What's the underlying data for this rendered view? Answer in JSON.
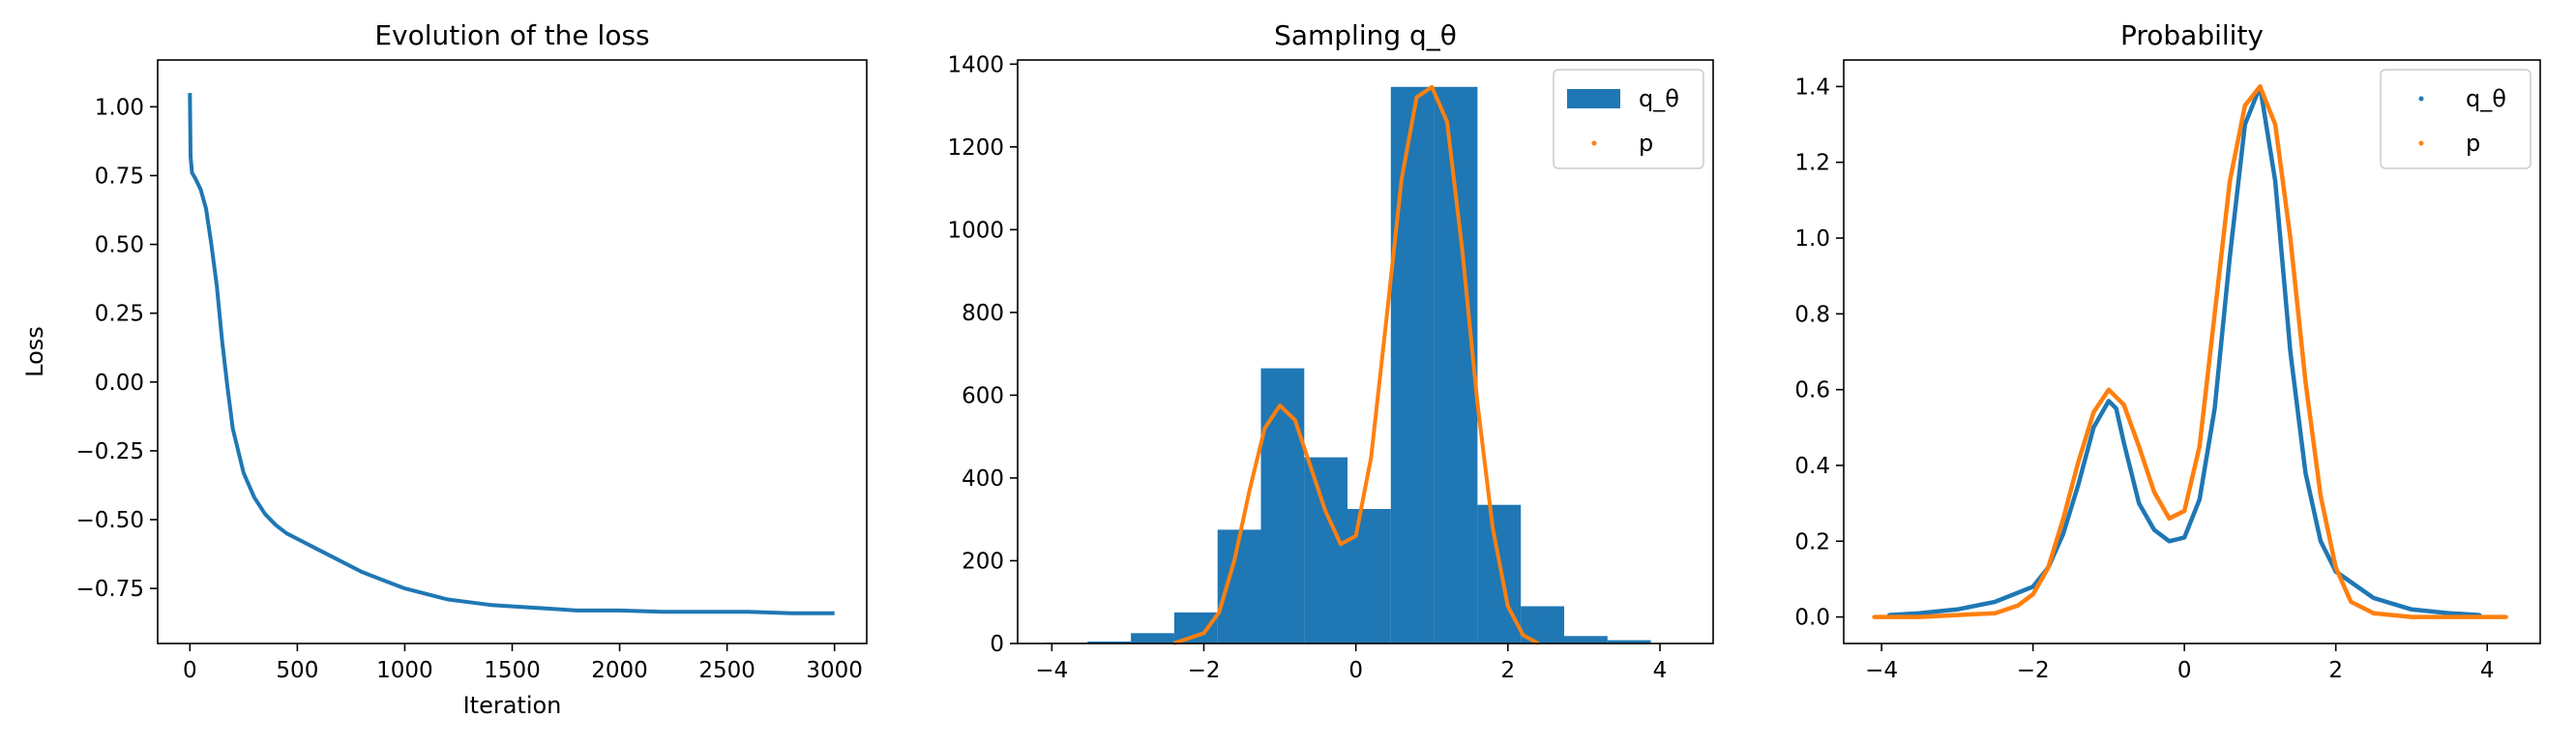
{
  "chart_data": [
    {
      "type": "line",
      "title": "Evolution of the loss",
      "xlabel": "Iteration",
      "ylabel": "Loss",
      "xlim": [
        -150,
        3150
      ],
      "ylim": [
        -0.95,
        1.17
      ],
      "xticks": [
        0,
        500,
        1000,
        1500,
        2000,
        2500,
        3000
      ],
      "xtick_labels": [
        "0",
        "500",
        "1000",
        "1500",
        "2000",
        "2500",
        "3000"
      ],
      "yticks": [
        -0.75,
        -0.5,
        -0.25,
        0.0,
        0.25,
        0.5,
        0.75,
        1.0
      ],
      "ytick_labels": [
        "−0.75",
        "−0.50",
        "−0.25",
        "0.00",
        "0.25",
        "0.50",
        "0.75",
        "1.00"
      ],
      "grid": false,
      "color": "#1f77b4",
      "series": [
        {
          "x": [
            0,
            3,
            10,
            25,
            50,
            75,
            100,
            125,
            150,
            175,
            200,
            250,
            300,
            350,
            400,
            450,
            500,
            600,
            700,
            800,
            900,
            1000,
            1100,
            1200,
            1300,
            1400,
            1500,
            1600,
            1700,
            1800,
            1900,
            2000,
            2200,
            2400,
            2600,
            2800,
            3000
          ],
          "values": [
            1.05,
            0.82,
            0.76,
            0.74,
            0.7,
            0.63,
            0.5,
            0.35,
            0.15,
            -0.02,
            -0.17,
            -0.33,
            -0.42,
            -0.48,
            -0.52,
            -0.55,
            -0.57,
            -0.61,
            -0.65,
            -0.69,
            -0.72,
            -0.75,
            -0.77,
            -0.79,
            -0.8,
            -0.81,
            -0.815,
            -0.82,
            -0.825,
            -0.83,
            -0.83,
            -0.83,
            -0.835,
            -0.835,
            -0.835,
            -0.84,
            -0.84
          ]
        }
      ]
    },
    {
      "type": "bar",
      "title": "Sampling q_θ",
      "xlim": [
        -4.45,
        4.7
      ],
      "ylim": [
        0,
        1410
      ],
      "xticks": [
        -4,
        -2,
        0,
        2,
        4
      ],
      "xtick_labels": [
        "−4",
        "−2",
        "0",
        "2",
        "4"
      ],
      "yticks": [
        0,
        200,
        400,
        600,
        800,
        1000,
        1200,
        1400
      ],
      "ytick_labels": [
        "0",
        "200",
        "400",
        "600",
        "800",
        "1000",
        "1200",
        "1400"
      ],
      "grid": false,
      "legend_position": "top-right",
      "bins": {
        "edges": [
          -4.1,
          -3.53,
          -2.96,
          -2.39,
          -1.82,
          -1.25,
          -0.68,
          -0.11,
          0.46,
          1.03,
          1.6,
          2.17,
          2.74,
          3.31,
          3.88
        ],
        "values": [
          2,
          5,
          25,
          75,
          275,
          665,
          450,
          325,
          1345,
          1345,
          335,
          90,
          18,
          8
        ]
      },
      "series": [
        {
          "name": "q_θ",
          "color": "#1f77b4"
        },
        {
          "name": "p",
          "color": "#ff7f0e",
          "x": [
            -2.4,
            -2.0,
            -1.8,
            -1.6,
            -1.4,
            -1.2,
            -1.0,
            -0.8,
            -0.6,
            -0.4,
            -0.2,
            0.0,
            0.2,
            0.4,
            0.6,
            0.8,
            1.0,
            1.2,
            1.4,
            1.6,
            1.8,
            2.0,
            2.2,
            2.4
          ],
          "values": [
            0,
            25,
            75,
            200,
            370,
            520,
            575,
            540,
            430,
            320,
            240,
            260,
            450,
            780,
            1120,
            1320,
            1345,
            1260,
            950,
            580,
            280,
            90,
            20,
            0
          ]
        }
      ]
    },
    {
      "type": "scatter",
      "title": "Probability",
      "xlim": [
        -4.5,
        4.7
      ],
      "ylim": [
        -0.07,
        1.47
      ],
      "xticks": [
        -4,
        -2,
        0,
        2,
        4
      ],
      "xtick_labels": [
        "−4",
        "−2",
        "0",
        "2",
        "4"
      ],
      "yticks": [
        0.0,
        0.2,
        0.4,
        0.6,
        0.8,
        1.0,
        1.2,
        1.4
      ],
      "ytick_labels": [
        "0.0",
        "0.2",
        "0.4",
        "0.6",
        "0.8",
        "1.0",
        "1.2",
        "1.4"
      ],
      "grid": false,
      "legend_position": "top-right",
      "series": [
        {
          "name": "q_θ",
          "color": "#1f77b4",
          "x": [
            -3.9,
            -3.5,
            -3.0,
            -2.5,
            -2.0,
            -1.8,
            -1.6,
            -1.4,
            -1.2,
            -1.0,
            -0.9,
            -0.8,
            -0.6,
            -0.4,
            -0.2,
            0.0,
            0.2,
            0.4,
            0.6,
            0.8,
            1.0,
            1.2,
            1.4,
            1.6,
            1.8,
            2.0,
            2.5,
            3.0,
            3.5,
            3.9
          ],
          "values": [
            0.005,
            0.01,
            0.02,
            0.04,
            0.08,
            0.13,
            0.22,
            0.35,
            0.5,
            0.57,
            0.55,
            0.46,
            0.3,
            0.23,
            0.2,
            0.21,
            0.31,
            0.55,
            0.95,
            1.3,
            1.4,
            1.15,
            0.7,
            0.38,
            0.2,
            0.12,
            0.05,
            0.02,
            0.01,
            0.005
          ]
        },
        {
          "name": "p",
          "color": "#ff7f0e",
          "x": [
            -4.1,
            -3.5,
            -3.0,
            -2.5,
            -2.2,
            -2.0,
            -1.8,
            -1.6,
            -1.4,
            -1.2,
            -1.0,
            -0.8,
            -0.6,
            -0.4,
            -0.2,
            0.0,
            0.2,
            0.4,
            0.6,
            0.8,
            1.0,
            1.2,
            1.4,
            1.6,
            1.8,
            2.0,
            2.2,
            2.5,
            3.0,
            3.5,
            4.25
          ],
          "values": [
            0,
            0,
            0.005,
            0.01,
            0.03,
            0.06,
            0.13,
            0.26,
            0.41,
            0.54,
            0.6,
            0.56,
            0.45,
            0.33,
            0.26,
            0.28,
            0.45,
            0.8,
            1.15,
            1.35,
            1.4,
            1.3,
            1.0,
            0.62,
            0.32,
            0.13,
            0.04,
            0.01,
            0.0,
            0.0,
            0
          ]
        }
      ]
    }
  ]
}
